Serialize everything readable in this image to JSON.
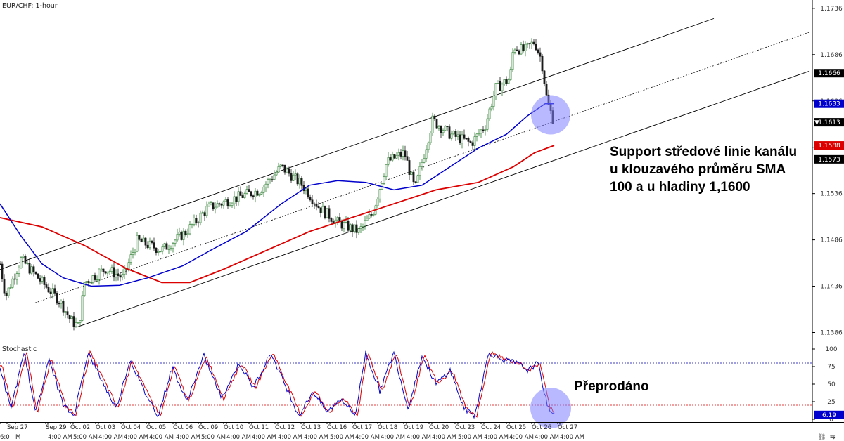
{
  "chart_data": [
    {
      "type": "candlestick",
      "title": "EUR/CHF: 1-hour",
      "ylim": [
        1.1375,
        1.1745
      ],
      "y_ticks": [
        1.1736,
        1.1686,
        1.1636,
        1.1586,
        1.1536,
        1.1486,
        1.1436,
        1.1386
      ],
      "ohlc_key_points": [
        {
          "t": 0,
          "price": 1.146
        },
        {
          "t": 8,
          "price": 1.1425
        },
        {
          "t": 30,
          "price": 1.1465
        },
        {
          "t": 60,
          "price": 1.144
        },
        {
          "t": 85,
          "price": 1.142
        },
        {
          "t": 100,
          "price": 1.14
        },
        {
          "t": 112,
          "price": 1.1392
        },
        {
          "t": 120,
          "price": 1.144
        },
        {
          "t": 150,
          "price": 1.1455
        },
        {
          "t": 175,
          "price": 1.1445
        },
        {
          "t": 195,
          "price": 1.1485
        },
        {
          "t": 230,
          "price": 1.1475
        },
        {
          "t": 265,
          "price": 1.1495
        },
        {
          "t": 295,
          "price": 1.152
        },
        {
          "t": 330,
          "price": 1.153
        },
        {
          "t": 370,
          "price": 1.154
        },
        {
          "t": 400,
          "price": 1.1565
        },
        {
          "t": 430,
          "price": 1.1545
        },
        {
          "t": 455,
          "price": 1.152
        },
        {
          "t": 480,
          "price": 1.1505
        },
        {
          "t": 510,
          "price": 1.1495
        },
        {
          "t": 530,
          "price": 1.1515
        },
        {
          "t": 550,
          "price": 1.157
        },
        {
          "t": 575,
          "price": 1.158
        },
        {
          "t": 590,
          "price": 1.154
        },
        {
          "t": 600,
          "price": 1.157
        },
        {
          "t": 615,
          "price": 1.1615
        },
        {
          "t": 640,
          "price": 1.16
        },
        {
          "t": 670,
          "price": 1.159
        },
        {
          "t": 690,
          "price": 1.161
        },
        {
          "t": 705,
          "price": 1.165
        },
        {
          "t": 725,
          "price": 1.166
        },
        {
          "t": 730,
          "price": 1.1695
        },
        {
          "t": 745,
          "price": 1.169
        },
        {
          "t": 760,
          "price": 1.17
        },
        {
          "t": 770,
          "price": 1.168
        },
        {
          "t": 778,
          "price": 1.1635
        },
        {
          "t": 788,
          "price": 1.1613
        }
      ],
      "sma_100_blue": [
        {
          "t": 0,
          "price": 1.1525
        },
        {
          "t": 30,
          "price": 1.149
        },
        {
          "t": 60,
          "price": 1.146
        },
        {
          "t": 90,
          "price": 1.1445
        },
        {
          "t": 130,
          "price": 1.1436
        },
        {
          "t": 170,
          "price": 1.1437
        },
        {
          "t": 210,
          "price": 1.1445
        },
        {
          "t": 260,
          "price": 1.1458
        },
        {
          "t": 300,
          "price": 1.1475
        },
        {
          "t": 350,
          "price": 1.1495
        },
        {
          "t": 400,
          "price": 1.1525
        },
        {
          "t": 440,
          "price": 1.1545
        },
        {
          "t": 480,
          "price": 1.155
        },
        {
          "t": 520,
          "price": 1.1548
        },
        {
          "t": 560,
          "price": 1.154
        },
        {
          "t": 600,
          "price": 1.1545
        },
        {
          "t": 640,
          "price": 1.1565
        },
        {
          "t": 680,
          "price": 1.1585
        },
        {
          "t": 720,
          "price": 1.16
        },
        {
          "t": 750,
          "price": 1.162
        },
        {
          "t": 775,
          "price": 1.1633
        },
        {
          "t": 788,
          "price": 1.1633
        }
      ],
      "sma_200_red": [
        {
          "t": 0,
          "price": 1.151
        },
        {
          "t": 60,
          "price": 1.15
        },
        {
          "t": 120,
          "price": 1.148
        },
        {
          "t": 180,
          "price": 1.1455
        },
        {
          "t": 230,
          "price": 1.144
        },
        {
          "t": 270,
          "price": 1.144
        },
        {
          "t": 320,
          "price": 1.1455
        },
        {
          "t": 380,
          "price": 1.1475
        },
        {
          "t": 440,
          "price": 1.1495
        },
        {
          "t": 500,
          "price": 1.151
        },
        {
          "t": 560,
          "price": 1.1525
        },
        {
          "t": 620,
          "price": 1.154
        },
        {
          "t": 680,
          "price": 1.1548
        },
        {
          "t": 730,
          "price": 1.1565
        },
        {
          "t": 760,
          "price": 1.158
        },
        {
          "t": 788,
          "price": 1.1588
        }
      ],
      "channel": {
        "upper": [
          {
            "t": 0,
            "price": 1.1454
          },
          {
            "t": 1015,
            "price": 1.1725
          }
        ],
        "middle": [
          {
            "t": 50,
            "price": 1.1418
          },
          {
            "t": 1150,
            "price": 1.171
          }
        ],
        "lower": [
          {
            "t": 110,
            "price": 1.1392
          },
          {
            "t": 1150,
            "price": 1.1668
          }
        ]
      },
      "price_tags": [
        {
          "value": "1.1666",
          "price": 1.1666,
          "bg": "#000000",
          "fg": "#ffffff"
        },
        {
          "value": "1.1633",
          "price": 1.1633,
          "bg": "#0000cc",
          "fg": "#ffffff"
        },
        {
          "value": "1.1613",
          "price": 1.1613,
          "bg": "#000000",
          "fg": "#ffffff",
          "marker": "▼"
        },
        {
          "value": "1.1588",
          "price": 1.1588,
          "bg": "#dd0000",
          "fg": "#ffffff"
        },
        {
          "value": "1.1573",
          "price": 1.1573,
          "bg": "#000000",
          "fg": "#ffffff"
        }
      ],
      "annotation": "Support středové linie kanálu u klouzavého průměru SMA 100 a u hladiny 1,1600",
      "annotation_lines": [
        "Support středové linie kanálu",
        "u klouzavého průměru SMA",
        "100 a u hladiny 1,1600"
      ],
      "highlight_circle": {
        "t": 783,
        "price": 1.1621,
        "color": "#8080ff"
      },
      "colors": {
        "up": "#2e7d32",
        "down": "#1b1b1b",
        "sma100": "#0000cc",
        "sma200": "#dd0000",
        "channel": "#000000"
      }
    },
    {
      "type": "line",
      "title": "Stochastic",
      "ylim": [
        0,
        100
      ],
      "y_ticks": [
        100,
        75,
        50,
        25,
        0
      ],
      "levels": [
        80,
        20
      ],
      "k_key_points": [
        {
          "t": 0,
          "v": 75
        },
        {
          "t": 15,
          "v": 15
        },
        {
          "t": 35,
          "v": 95
        },
        {
          "t": 50,
          "v": 10
        },
        {
          "t": 70,
          "v": 85
        },
        {
          "t": 90,
          "v": 20
        },
        {
          "t": 105,
          "v": 5
        },
        {
          "t": 125,
          "v": 95
        },
        {
          "t": 145,
          "v": 55
        },
        {
          "t": 165,
          "v": 15
        },
        {
          "t": 185,
          "v": 85
        },
        {
          "t": 205,
          "v": 40
        },
        {
          "t": 225,
          "v": 5
        },
        {
          "t": 245,
          "v": 75
        },
        {
          "t": 265,
          "v": 25
        },
        {
          "t": 290,
          "v": 90
        },
        {
          "t": 315,
          "v": 30
        },
        {
          "t": 340,
          "v": 80
        },
        {
          "t": 360,
          "v": 45
        },
        {
          "t": 385,
          "v": 95
        },
        {
          "t": 405,
          "v": 50
        },
        {
          "t": 425,
          "v": 5
        },
        {
          "t": 445,
          "v": 40
        },
        {
          "t": 465,
          "v": 10
        },
        {
          "t": 485,
          "v": 30
        },
        {
          "t": 505,
          "v": 5
        },
        {
          "t": 520,
          "v": 95
        },
        {
          "t": 540,
          "v": 40
        },
        {
          "t": 560,
          "v": 95
        },
        {
          "t": 580,
          "v": 15
        },
        {
          "t": 600,
          "v": 90
        },
        {
          "t": 620,
          "v": 50
        },
        {
          "t": 640,
          "v": 70
        },
        {
          "t": 660,
          "v": 15
        },
        {
          "t": 675,
          "v": 5
        },
        {
          "t": 695,
          "v": 95
        },
        {
          "t": 715,
          "v": 85
        },
        {
          "t": 735,
          "v": 80
        },
        {
          "t": 750,
          "v": 70
        },
        {
          "t": 765,
          "v": 80
        },
        {
          "t": 778,
          "v": 20
        },
        {
          "t": 788,
          "v": 6
        }
      ],
      "last_value_tag": {
        "value": "6.19",
        "bg": "#0000cc",
        "fg": "#ffffff",
        "v": 6.19
      },
      "colors": {
        "k": "#0000cc",
        "d": "#dd0000",
        "level_high": "#0000aa",
        "level_low": "#dd0000"
      },
      "annotation": "Přeprodáno",
      "highlight_circle": {
        "t": 783,
        "v": 16,
        "color": "#8080ff"
      }
    }
  ],
  "x_axis": {
    "labels": [
      {
        "t": 0,
        "text": "6:0"
      },
      {
        "t": 10,
        "text": "Sep 27"
      },
      {
        "t": 22,
        "text": "M"
      },
      {
        "t": 65,
        "text": "Sep 29"
      },
      {
        "t": 68,
        "text": "4:00 AM"
      },
      {
        "t": 100,
        "text": "Oct 02"
      },
      {
        "t": 104,
        "text": "5:00 AM"
      },
      {
        "t": 136,
        "text": "Oct 03"
      },
      {
        "t": 140,
        "text": "4:00 AM"
      },
      {
        "t": 172,
        "text": "Oct 04"
      },
      {
        "t": 176,
        "text": "4:00 AM"
      },
      {
        "t": 208,
        "text": "Oct 05"
      },
      {
        "t": 212,
        "text": "4:00 AM"
      },
      {
        "t": 246,
        "text": "Oct 06"
      },
      {
        "t": 250,
        "text": "4:00 AM"
      },
      {
        "t": 282,
        "text": "Oct 09"
      },
      {
        "t": 286,
        "text": "5:00 AM"
      },
      {
        "t": 318,
        "text": "Oct 10"
      },
      {
        "t": 322,
        "text": "4:00 AM"
      },
      {
        "t": 354,
        "text": "Oct 11"
      },
      {
        "t": 358,
        "text": "4:00 AM"
      },
      {
        "t": 391,
        "text": "Oct 12"
      },
      {
        "t": 395,
        "text": "4:00 AM"
      },
      {
        "t": 428,
        "text": "Oct 13"
      },
      {
        "t": 432,
        "text": "4:00 AM"
      },
      {
        "t": 465,
        "text": "Oct 16"
      },
      {
        "t": 469,
        "text": "5:00 AM"
      },
      {
        "t": 501,
        "text": "Oct 17"
      },
      {
        "t": 505,
        "text": "4:00 AM"
      },
      {
        "t": 537,
        "text": "Oct 18"
      },
      {
        "t": 541,
        "text": "4:00 AM"
      },
      {
        "t": 574,
        "text": "Oct 19"
      },
      {
        "t": 578,
        "text": "4:00 AM"
      },
      {
        "t": 610,
        "text": "Oct 20"
      },
      {
        "t": 614,
        "text": "4:00 AM"
      },
      {
        "t": 647,
        "text": "Oct 23"
      },
      {
        "t": 651,
        "text": "5:00 AM"
      },
      {
        "t": 684,
        "text": "Oct 24"
      },
      {
        "t": 688,
        "text": "4:00 AM"
      },
      {
        "t": 720,
        "text": "Oct 25"
      },
      {
        "t": 724,
        "text": "4:00 AM"
      },
      {
        "t": 756,
        "text": "Oct 26"
      },
      {
        "t": 760,
        "text": "4:00 AM"
      },
      {
        "t": 793,
        "text": "Oct 27"
      },
      {
        "t": 796,
        "text": "4:00 AM"
      }
    ]
  }
}
